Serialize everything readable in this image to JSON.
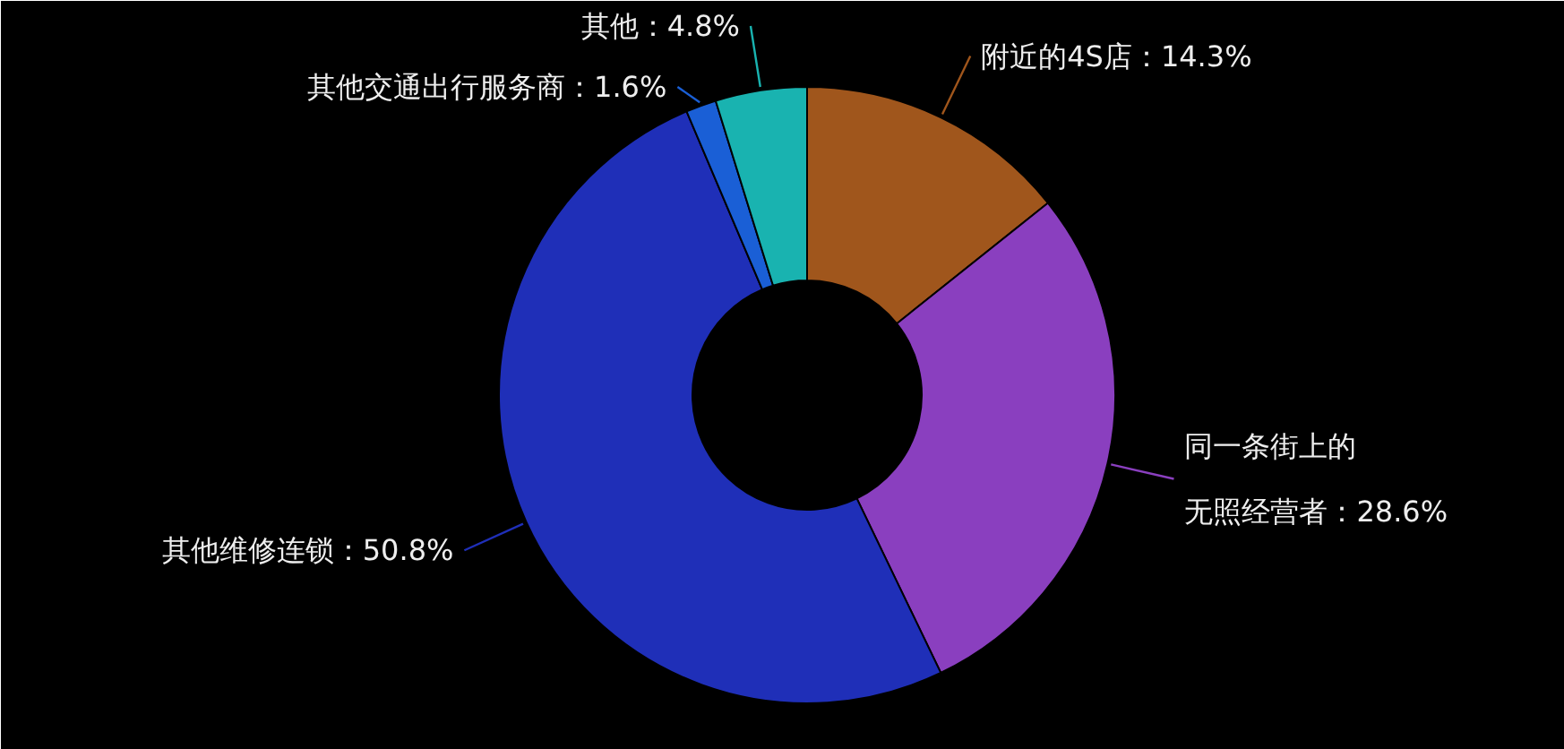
{
  "chart_data": {
    "type": "donut",
    "categories": [
      "附近的4S店",
      "同一条街上的无照经营者",
      "其他维修连锁",
      "其他交通出行服务商",
      "其他"
    ],
    "values": [
      14.3,
      28.6,
      50.8,
      1.6,
      4.8
    ],
    "value_labels": [
      "14.3%",
      "28.6%",
      "50.8%",
      "1.6%",
      "4.8%"
    ],
    "colors": [
      "#a0561c",
      "#8a3fbf",
      "#1f2fb8",
      "#1a5fd6",
      "#19b3b0"
    ]
  }
}
